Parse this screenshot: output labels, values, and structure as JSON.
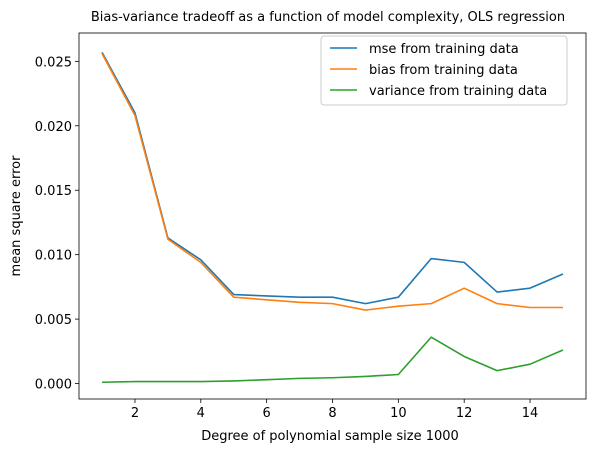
{
  "chart_data": {
    "type": "line",
    "title": "Bias-variance tradeoff as a function of model complexity, OLS regression",
    "xlabel": "Degree of polynomial sample size 1000",
    "ylabel": "mean square error",
    "xlim": [
      0.3,
      15.7
    ],
    "ylim": [
      -0.0012,
      0.0272
    ],
    "xticks": [
      2,
      4,
      6,
      8,
      10,
      12,
      14
    ],
    "xtick_labels": [
      "2",
      "4",
      "6",
      "8",
      "10",
      "12",
      "14"
    ],
    "yticks": [
      0.0,
      0.005,
      0.01,
      0.015,
      0.02,
      0.025
    ],
    "ytick_labels": [
      "0.000",
      "0.005",
      "0.010",
      "0.015",
      "0.020",
      "0.025"
    ],
    "grid": false,
    "legend_position": "top-right",
    "x": [
      1,
      2,
      3,
      4,
      5,
      6,
      7,
      8,
      9,
      10,
      11,
      12,
      13,
      14,
      15
    ],
    "series": [
      {
        "name": "mse from training data",
        "color": "#1f77b4",
        "values": [
          0.0257,
          0.021,
          0.0113,
          0.0096,
          0.0069,
          0.0068,
          0.0067,
          0.0067,
          0.0062,
          0.0067,
          0.0097,
          0.0094,
          0.0071,
          0.0074,
          0.0085
        ]
      },
      {
        "name": "bias from training data",
        "color": "#ff7f0e",
        "values": [
          0.0256,
          0.0208,
          0.0112,
          0.0094,
          0.0067,
          0.0065,
          0.0063,
          0.0062,
          0.0057,
          0.006,
          0.0062,
          0.0074,
          0.0062,
          0.0059,
          0.0059
        ]
      },
      {
        "name": "variance from training data",
        "color": "#2ca02c",
        "values": [
          0.0001,
          0.00015,
          0.00015,
          0.00015,
          0.0002,
          0.0003,
          0.0004,
          0.00045,
          0.00055,
          0.0007,
          0.0036,
          0.0021,
          0.001,
          0.0015,
          0.0026
        ]
      }
    ]
  }
}
